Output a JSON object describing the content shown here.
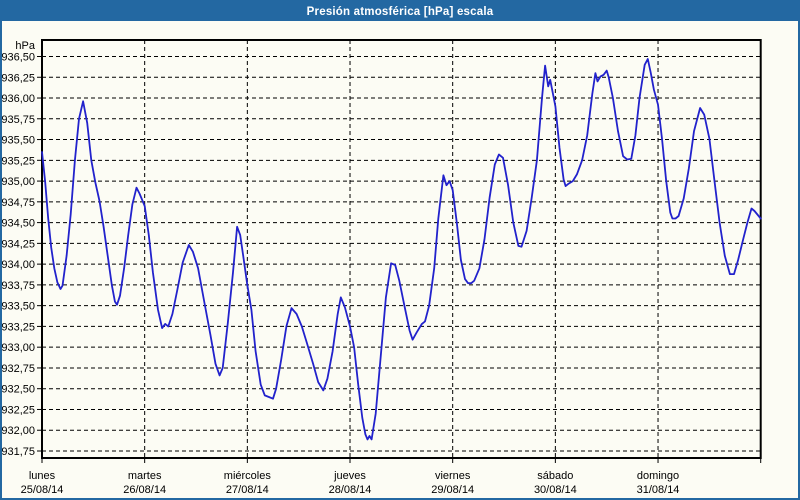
{
  "window": {
    "title": "Presión atmosférica [hPa] escala"
  },
  "colors": {
    "titlebar_bg": "#2368a2",
    "window_border": "#2368a2",
    "content_bg": "#fcfcf4",
    "grid": "#000000",
    "frame": "#000000",
    "series": "#2222cc",
    "label_text": "#000000",
    "title_text": "#ffffff"
  },
  "chart_data": {
    "type": "line",
    "title": "Presión atmosférica [hPa] escala",
    "ylabel": "hPa",
    "grid": "dashed",
    "legend": "none",
    "y_axis": {
      "max": 936.5,
      "min": 931.75,
      "step": 0.25,
      "unit_label": "hPa",
      "tick_labels": [
        "936,50",
        "936,25",
        "936,00",
        "935,75",
        "935,50",
        "935,25",
        "935,00",
        "934,75",
        "934,50",
        "934,25",
        "934,00",
        "933,75",
        "933,50",
        "933,25",
        "933,00",
        "932,75",
        "932,50",
        "932,25",
        "932,00",
        "931,75"
      ]
    },
    "x_axis": {
      "tick_days": [
        {
          "name": "lunes",
          "date": "25/08/14"
        },
        {
          "name": "martes",
          "date": "26/08/14"
        },
        {
          "name": "miércoles",
          "date": "27/08/14"
        },
        {
          "name": "jueves",
          "date": "28/08/14"
        },
        {
          "name": "viernes",
          "date": "29/08/14"
        },
        {
          "name": "sábado",
          "date": "30/08/14"
        },
        {
          "name": "domingo",
          "date": "31/08/14"
        }
      ],
      "days_shown": 7
    },
    "series": [
      {
        "name": "Presión atmosférica",
        "color": "#2222cc",
        "points": [
          [
            0.0,
            935.35
          ],
          [
            0.03,
            935.0
          ],
          [
            0.06,
            934.55
          ],
          [
            0.09,
            934.2
          ],
          [
            0.12,
            933.95
          ],
          [
            0.15,
            933.78
          ],
          [
            0.18,
            933.7
          ],
          [
            0.2,
            933.74
          ],
          [
            0.24,
            934.1
          ],
          [
            0.28,
            934.6
          ],
          [
            0.32,
            935.25
          ],
          [
            0.36,
            935.75
          ],
          [
            0.4,
            935.96
          ],
          [
            0.44,
            935.7
          ],
          [
            0.48,
            935.25
          ],
          [
            0.52,
            934.98
          ],
          [
            0.56,
            934.76
          ],
          [
            0.6,
            934.45
          ],
          [
            0.64,
            934.1
          ],
          [
            0.68,
            933.75
          ],
          [
            0.71,
            933.55
          ],
          [
            0.73,
            933.51
          ],
          [
            0.76,
            933.62
          ],
          [
            0.8,
            933.95
          ],
          [
            0.84,
            934.35
          ],
          [
            0.88,
            934.72
          ],
          [
            0.92,
            934.92
          ],
          [
            0.95,
            934.85
          ],
          [
            1.0,
            934.7
          ],
          [
            1.04,
            934.35
          ],
          [
            1.08,
            933.9
          ],
          [
            1.13,
            933.45
          ],
          [
            1.17,
            933.23
          ],
          [
            1.2,
            933.28
          ],
          [
            1.23,
            933.25
          ],
          [
            1.27,
            933.4
          ],
          [
            1.32,
            933.7
          ],
          [
            1.37,
            934.02
          ],
          [
            1.43,
            934.23
          ],
          [
            1.47,
            934.15
          ],
          [
            1.52,
            933.95
          ],
          [
            1.58,
            933.55
          ],
          [
            1.64,
            933.15
          ],
          [
            1.69,
            932.8
          ],
          [
            1.73,
            932.66
          ],
          [
            1.76,
            932.75
          ],
          [
            1.81,
            933.29
          ],
          [
            1.86,
            933.9
          ],
          [
            1.9,
            934.45
          ],
          [
            1.93,
            934.35
          ],
          [
            1.96,
            934.1
          ],
          [
            2.0,
            933.75
          ],
          [
            2.04,
            933.45
          ],
          [
            2.08,
            932.95
          ],
          [
            2.13,
            932.55
          ],
          [
            2.17,
            932.42
          ],
          [
            2.21,
            932.4
          ],
          [
            2.25,
            932.38
          ],
          [
            2.28,
            932.5
          ],
          [
            2.33,
            932.85
          ],
          [
            2.38,
            933.25
          ],
          [
            2.43,
            933.47
          ],
          [
            2.48,
            933.4
          ],
          [
            2.53,
            933.25
          ],
          [
            2.58,
            933.05
          ],
          [
            2.64,
            932.8
          ],
          [
            2.69,
            932.58
          ],
          [
            2.74,
            932.48
          ],
          [
            2.78,
            932.62
          ],
          [
            2.83,
            932.95
          ],
          [
            2.88,
            933.4
          ],
          [
            2.91,
            933.6
          ],
          [
            2.95,
            933.48
          ],
          [
            3.0,
            933.25
          ],
          [
            3.04,
            933.0
          ],
          [
            3.08,
            932.55
          ],
          [
            3.12,
            932.15
          ],
          [
            3.15,
            931.95
          ],
          [
            3.17,
            931.89
          ],
          [
            3.19,
            931.93
          ],
          [
            3.21,
            931.89
          ],
          [
            3.25,
            932.2
          ],
          [
            3.3,
            932.9
          ],
          [
            3.35,
            933.6
          ],
          [
            3.4,
            934.01
          ],
          [
            3.44,
            933.99
          ],
          [
            3.48,
            933.8
          ],
          [
            3.53,
            933.5
          ],
          [
            3.58,
            933.2
          ],
          [
            3.61,
            933.09
          ],
          [
            3.65,
            933.18
          ],
          [
            3.7,
            933.28
          ],
          [
            3.73,
            933.31
          ],
          [
            3.77,
            933.5
          ],
          [
            3.82,
            933.95
          ],
          [
            3.86,
            934.55
          ],
          [
            3.91,
            935.07
          ],
          [
            3.94,
            934.95
          ],
          [
            3.97,
            935.0
          ],
          [
            4.0,
            934.89
          ],
          [
            4.04,
            934.5
          ],
          [
            4.08,
            934.05
          ],
          [
            4.12,
            933.82
          ],
          [
            4.15,
            933.77
          ],
          [
            4.18,
            933.77
          ],
          [
            4.21,
            933.8
          ],
          [
            4.26,
            933.95
          ],
          [
            4.31,
            934.3
          ],
          [
            4.36,
            934.8
          ],
          [
            4.41,
            935.2
          ],
          [
            4.45,
            935.32
          ],
          [
            4.49,
            935.28
          ],
          [
            4.54,
            934.95
          ],
          [
            4.59,
            934.5
          ],
          [
            4.64,
            934.22
          ],
          [
            4.67,
            934.21
          ],
          [
            4.72,
            934.4
          ],
          [
            4.77,
            934.8
          ],
          [
            4.82,
            935.25
          ],
          [
            4.87,
            936.0
          ],
          [
            4.9,
            936.39
          ],
          [
            4.93,
            936.14
          ],
          [
            4.95,
            936.22
          ],
          [
            5.0,
            935.9
          ],
          [
            5.04,
            935.4
          ],
          [
            5.08,
            935.02
          ],
          [
            5.1,
            934.94
          ],
          [
            5.13,
            934.97
          ],
          [
            5.17,
            935.0
          ],
          [
            5.21,
            935.08
          ],
          [
            5.26,
            935.25
          ],
          [
            5.31,
            935.55
          ],
          [
            5.36,
            936.05
          ],
          [
            5.39,
            936.3
          ],
          [
            5.41,
            936.2
          ],
          [
            5.44,
            936.26
          ],
          [
            5.47,
            936.28
          ],
          [
            5.5,
            936.33
          ],
          [
            5.52,
            936.25
          ],
          [
            5.56,
            936.0
          ],
          [
            5.61,
            935.6
          ],
          [
            5.66,
            935.3
          ],
          [
            5.7,
            935.26
          ],
          [
            5.74,
            935.27
          ],
          [
            5.78,
            935.55
          ],
          [
            5.82,
            936.0
          ],
          [
            5.87,
            936.4
          ],
          [
            5.9,
            936.47
          ],
          [
            5.93,
            936.3
          ],
          [
            5.96,
            936.1
          ],
          [
            6.0,
            935.92
          ],
          [
            6.04,
            935.5
          ],
          [
            6.08,
            935.0
          ],
          [
            6.12,
            934.62
          ],
          [
            6.14,
            934.55
          ],
          [
            6.17,
            934.55
          ],
          [
            6.2,
            934.58
          ],
          [
            6.25,
            934.79
          ],
          [
            6.3,
            935.15
          ],
          [
            6.35,
            935.6
          ],
          [
            6.41,
            935.88
          ],
          [
            6.45,
            935.8
          ],
          [
            6.5,
            935.51
          ],
          [
            6.55,
            935.0
          ],
          [
            6.6,
            934.5
          ],
          [
            6.65,
            934.1
          ],
          [
            6.7,
            933.88
          ],
          [
            6.74,
            933.88
          ],
          [
            6.78,
            934.05
          ],
          [
            6.83,
            934.3
          ],
          [
            6.87,
            934.5
          ],
          [
            6.91,
            934.67
          ],
          [
            6.94,
            934.64
          ],
          [
            7.0,
            934.55
          ]
        ]
      }
    ]
  }
}
